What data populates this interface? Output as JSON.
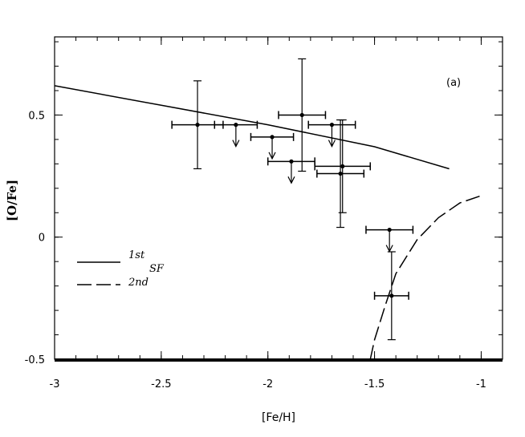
{
  "chart_data": {
    "type": "scatter",
    "panel_label": "(a)",
    "xlabel": "[Fe/H]",
    "ylabel": "[O/Fe]",
    "xlim": [
      -3,
      -0.9
    ],
    "ylim": [
      -0.5,
      0.82
    ],
    "x_ticks": [
      -3,
      -2.5,
      -2,
      -1.5,
      -1
    ],
    "x_tick_labels": [
      "-3",
      "-2.5",
      "-2",
      "-1.5",
      "-1"
    ],
    "y_ticks": [
      -0.5,
      0,
      0.5
    ],
    "y_tick_labels": [
      "-0.5",
      "0",
      "0.5"
    ],
    "legend": {
      "placement": "lower-left",
      "line1": "1st",
      "line2": "2nd",
      "subscript": "SF"
    },
    "series": [
      {
        "name": "1st",
        "style": "solid",
        "points": [
          [
            -3,
            0.62
          ],
          [
            -2.5,
            0.54
          ],
          [
            -2.0,
            0.46
          ],
          [
            -1.5,
            0.37
          ],
          [
            -1.15,
            0.28
          ]
        ]
      },
      {
        "name": "2nd",
        "style": "dashed",
        "points": [
          [
            -1.52,
            -0.5
          ],
          [
            -1.5,
            -0.42
          ],
          [
            -1.45,
            -0.28
          ],
          [
            -1.4,
            -0.15
          ],
          [
            -1.3,
            -0.01
          ],
          [
            -1.2,
            0.08
          ],
          [
            -1.1,
            0.14
          ],
          [
            -1.0,
            0.17
          ]
        ]
      }
    ],
    "data_points": [
      {
        "x": -2.33,
        "y": 0.46,
        "xerr": 0.12,
        "yerr": 0.18,
        "upper_limit": false
      },
      {
        "x": -2.15,
        "y": 0.46,
        "xerr": 0.1,
        "yerr": 0,
        "upper_limit": true
      },
      {
        "x": -1.98,
        "y": 0.41,
        "xerr": 0.1,
        "yerr": 0,
        "upper_limit": true
      },
      {
        "x": -1.84,
        "y": 0.5,
        "xerr": 0.11,
        "yerr": 0.23,
        "upper_limit": false
      },
      {
        "x": -1.7,
        "y": 0.46,
        "xerr": 0.11,
        "yerr": 0,
        "upper_limit": true
      },
      {
        "x": -1.89,
        "y": 0.31,
        "xerr": 0.11,
        "yerr": 0,
        "upper_limit": true
      },
      {
        "x": -1.65,
        "y": 0.29,
        "xerr": 0.13,
        "yerr": 0.19,
        "upper_limit": false
      },
      {
        "x": -1.66,
        "y": 0.26,
        "xerr": 0.11,
        "yerr": 0.22,
        "upper_limit": false
      },
      {
        "x": -1.43,
        "y": 0.03,
        "xerr": 0.11,
        "yerr": 0,
        "upper_limit": true
      },
      {
        "x": -1.42,
        "y": -0.24,
        "xerr": 0.08,
        "yerr": 0.18,
        "upper_limit": false
      }
    ]
  }
}
